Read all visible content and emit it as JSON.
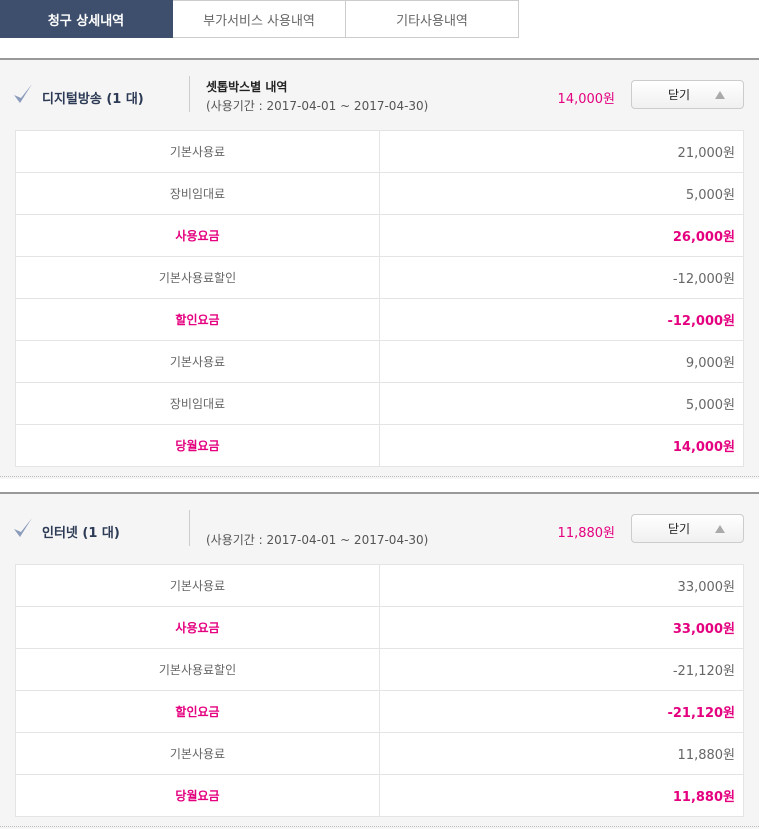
{
  "tabs": [
    {
      "label": "청구 상세내역",
      "active": true
    },
    {
      "label": "부가서비스 사용내역"
    },
    {
      "label": "기타사용내역"
    }
  ],
  "accent_color": "#e4007f",
  "sections": [
    {
      "title": "디지털방송 (1 대)",
      "subtitle": "셋톱박스별 내역",
      "period": "(사용기간 : 2017-04-01 ~ 2017-04-30)",
      "total": "14,000원",
      "close_label": "닫기",
      "rows": [
        {
          "label": "기본사용료",
          "value": "21,000원",
          "emphasis": false
        },
        {
          "label": "장비임대료",
          "value": "5,000원",
          "emphasis": false
        },
        {
          "label": "사용요금",
          "value": "26,000원",
          "emphasis": true
        },
        {
          "label": "기본사용료할인",
          "value": "-12,000원",
          "emphasis": false
        },
        {
          "label": "할인요금",
          "value": "-12,000원",
          "emphasis": true
        },
        {
          "label": "기본사용료",
          "value": "9,000원",
          "emphasis": false
        },
        {
          "label": "장비임대료",
          "value": "5,000원",
          "emphasis": false
        },
        {
          "label": "당월요금",
          "value": "14,000원",
          "emphasis": true
        }
      ]
    },
    {
      "title": "인터넷 (1 대)",
      "subtitle": "",
      "period": "(사용기간 : 2017-04-01 ~ 2017-04-30)",
      "total": "11,880원",
      "close_label": "닫기",
      "rows": [
        {
          "label": "기본사용료",
          "value": "33,000원",
          "emphasis": false
        },
        {
          "label": "사용요금",
          "value": "33,000원",
          "emphasis": true
        },
        {
          "label": "기본사용료할인",
          "value": "-21,120원",
          "emphasis": false
        },
        {
          "label": "할인요금",
          "value": "-21,120원",
          "emphasis": true
        },
        {
          "label": "기본사용료",
          "value": "11,880원",
          "emphasis": false
        },
        {
          "label": "당월요금",
          "value": "11,880원",
          "emphasis": true
        }
      ]
    }
  ]
}
